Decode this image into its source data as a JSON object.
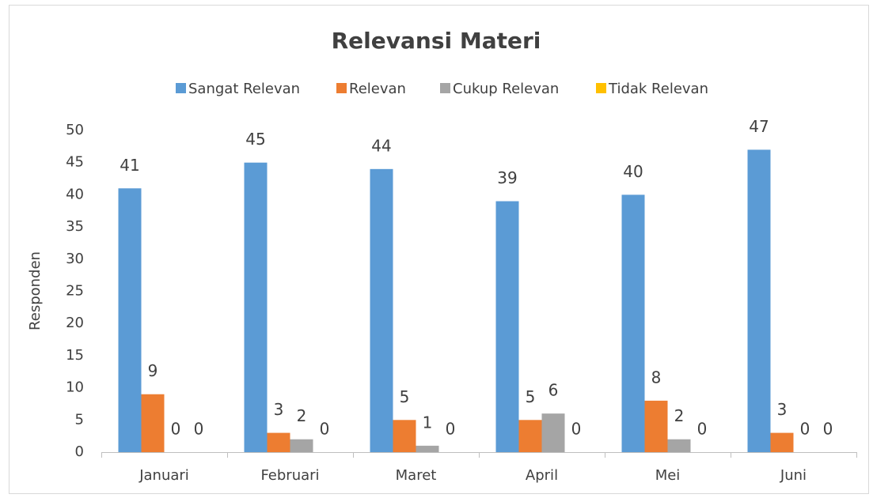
{
  "chart_data": {
    "type": "bar",
    "title": "Relevansi Materi",
    "y_label": "Responden",
    "categories": [
      "Januari",
      "Februari",
      "Maret",
      "April",
      "Mei",
      "Juni"
    ],
    "series": [
      {
        "name": "Sangat Relevan",
        "color": "#5b9bd5",
        "values": [
          41,
          45,
          44,
          39,
          40,
          47
        ]
      },
      {
        "name": "Relevan",
        "color": "#ed7d31",
        "values": [
          9,
          3,
          5,
          5,
          8,
          3
        ]
      },
      {
        "name": "Cukup Relevan",
        "color": "#a5a5a5",
        "values": [
          0,
          2,
          1,
          6,
          2,
          0
        ]
      },
      {
        "name": "Tidak Relevan",
        "color": "#ffc000",
        "values": [
          0,
          0,
          0,
          0,
          0,
          0
        ]
      }
    ],
    "ylim": [
      0,
      50
    ],
    "yticks": [
      0,
      5,
      10,
      15,
      20,
      25,
      30,
      35,
      40,
      45,
      50
    ],
    "grid": false,
    "legend": "top",
    "data_labels": true
  }
}
